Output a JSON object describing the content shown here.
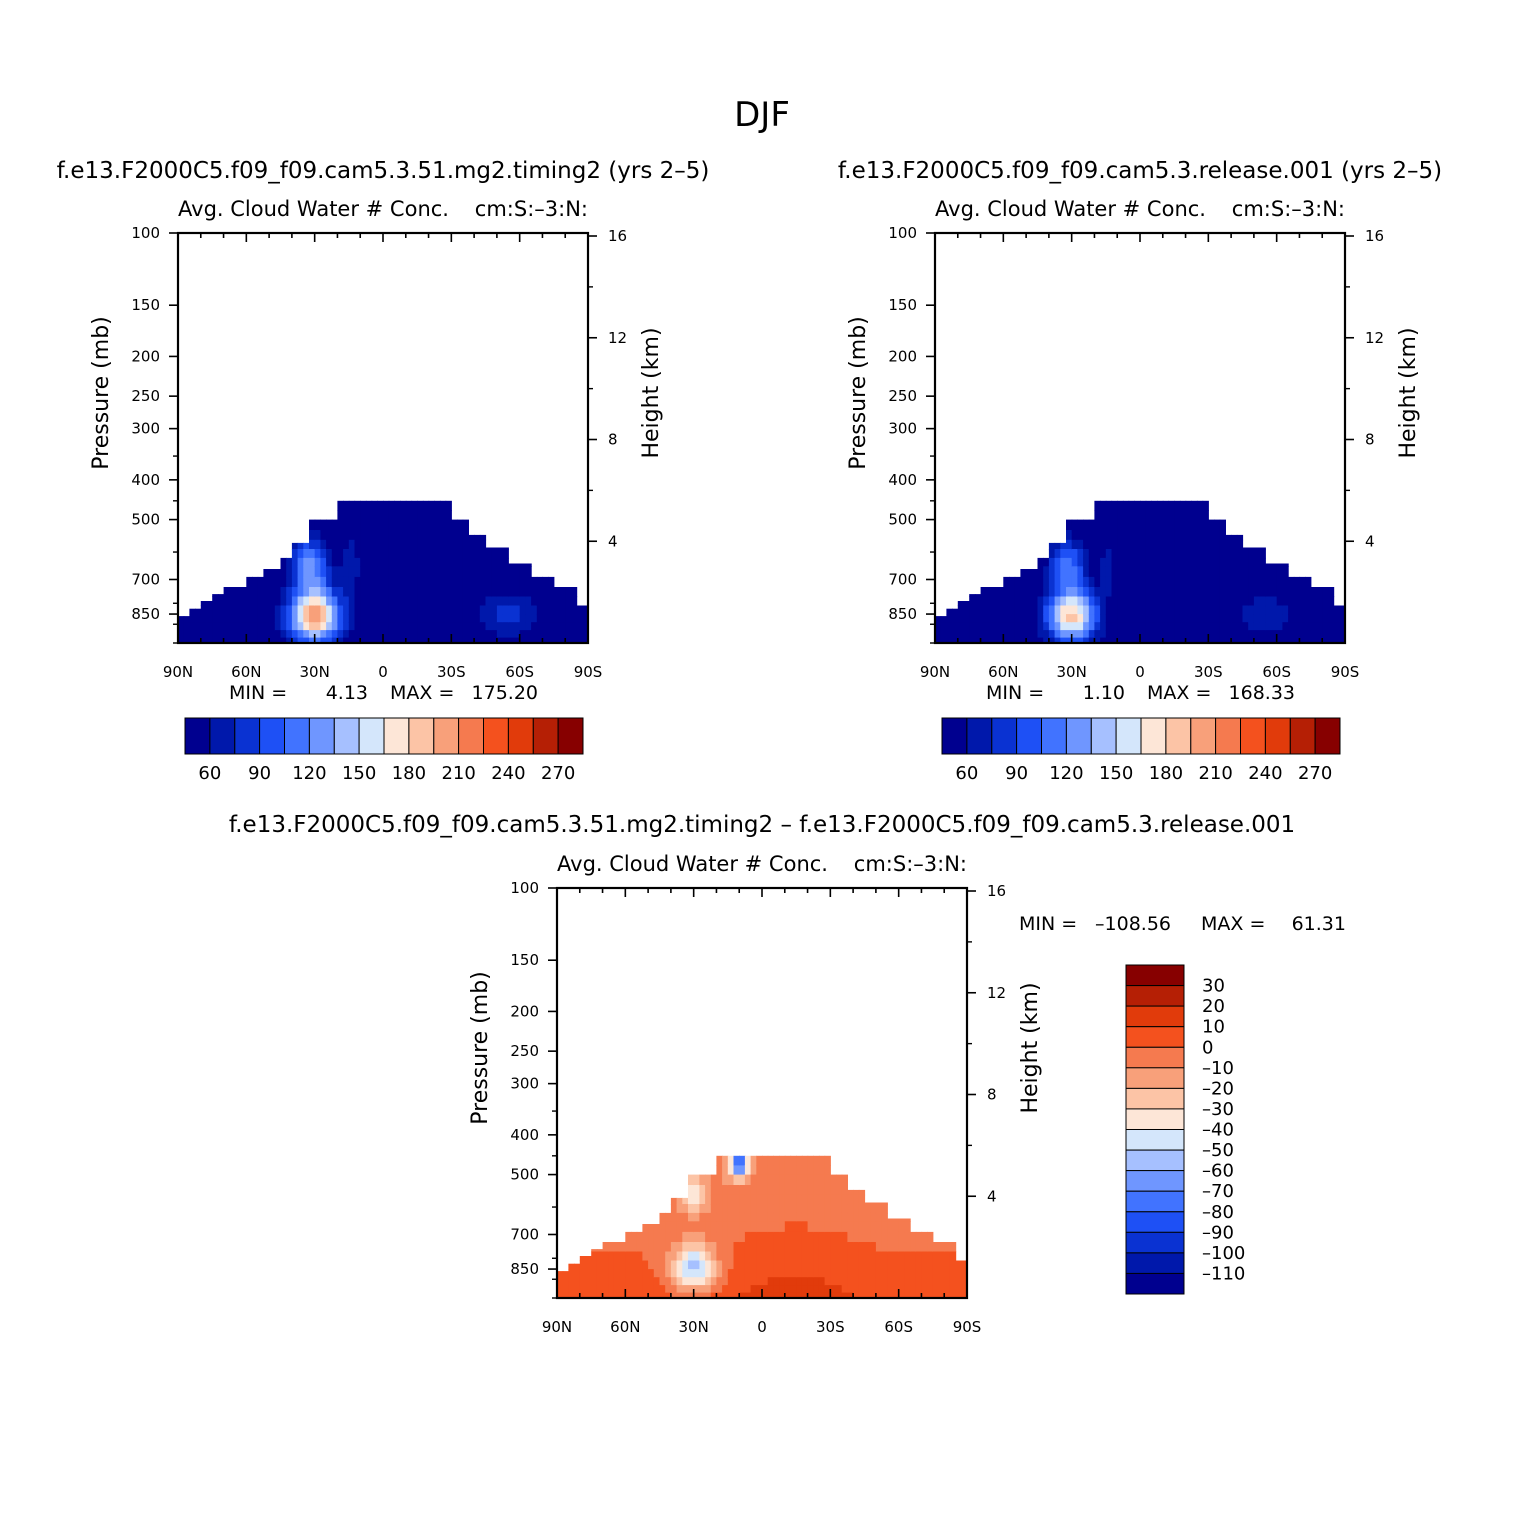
{
  "figure": {
    "title": "DJF"
  },
  "colors": {
    "abs": [
      "#00008f",
      "#0018ab",
      "#0a32d2",
      "#1e50f5",
      "#4173ff",
      "#6f96ff",
      "#a6c0ff",
      "#d4e6fb",
      "#fde6d7",
      "#fcc4a6",
      "#f8a07a",
      "#f57a4f",
      "#f4511e",
      "#e13b0b",
      "#b51f05",
      "#870000"
    ],
    "diff": [
      "#00008f",
      "#0018ab",
      "#0a32d2",
      "#1e50f5",
      "#4173ff",
      "#6f96ff",
      "#a6c0ff",
      "#d4e6fb",
      "#fde6d7",
      "#fcc4a6",
      "#f8a07a",
      "#f57a4f",
      "#f4511e",
      "#e13b0b",
      "#b51f05",
      "#870000"
    ]
  },
  "chart_data": [
    {
      "type": "heatmap",
      "case_title": "f.e13.F2000C5.f09_f09.cam5.3.51.mg2.timing2 (yrs 2–5)",
      "title": "Avg. Cloud Water # Conc.",
      "units": "cm:S:–3:N:",
      "ylabel": "Pressure (mb)",
      "ylabel_right": "Height (km)",
      "x_ticks": [
        "90N",
        "60N",
        "30N",
        "0",
        "30S",
        "60S",
        "90S"
      ],
      "x_range": [
        90,
        -90
      ],
      "y_ticks": [
        "100",
        "150",
        "200",
        "250",
        "300",
        "400",
        "500",
        "700",
        "850"
      ],
      "y_range": [
        100,
        1000
      ],
      "y_scale": "log",
      "height_ticks": [
        "16",
        "12",
        "8",
        "4"
      ],
      "stats": {
        "min_label": "MIN =",
        "min": "4.13",
        "max_label": "MAX =",
        "max": "175.20"
      },
      "colorbar": {
        "orientation": "horizontal",
        "labels": [
          "60",
          "90",
          "120",
          "150",
          "180",
          "210",
          "240",
          "270"
        ]
      }
    },
    {
      "type": "heatmap",
      "case_title": "f.e13.F2000C5.f09_f09.cam5.3.release.001 (yrs 2–5)",
      "title": "Avg. Cloud Water # Conc.",
      "units": "cm:S:–3:N:",
      "ylabel": "Pressure (mb)",
      "ylabel_right": "Height (km)",
      "x_ticks": [
        "90N",
        "60N",
        "30N",
        "0",
        "30S",
        "60S",
        "90S"
      ],
      "x_range": [
        90,
        -90
      ],
      "y_ticks": [
        "100",
        "150",
        "200",
        "250",
        "300",
        "400",
        "500",
        "700",
        "850"
      ],
      "y_range": [
        100,
        1000
      ],
      "y_scale": "log",
      "height_ticks": [
        "16",
        "12",
        "8",
        "4"
      ],
      "stats": {
        "min_label": "MIN =",
        "min": "1.10",
        "max_label": "MAX =",
        "max": "168.33"
      },
      "colorbar": {
        "orientation": "horizontal",
        "labels": [
          "60",
          "90",
          "120",
          "150",
          "180",
          "210",
          "240",
          "270"
        ]
      }
    },
    {
      "type": "heatmap",
      "case_title": "f.e13.F2000C5.f09_f09.cam5.3.51.mg2.timing2 – f.e13.F2000C5.f09_f09.cam5.3.release.001",
      "title": "Avg. Cloud Water # Conc.",
      "units": "cm:S:–3:N:",
      "ylabel": "Pressure (mb)",
      "ylabel_right": "Height (km)",
      "x_ticks": [
        "90N",
        "60N",
        "30N",
        "0",
        "30S",
        "60S",
        "90S"
      ],
      "x_range": [
        90,
        -90
      ],
      "y_ticks": [
        "100",
        "150",
        "200",
        "250",
        "300",
        "400",
        "500",
        "700",
        "850"
      ],
      "y_range": [
        100,
        1000
      ],
      "y_scale": "log",
      "height_ticks": [
        "16",
        "12",
        "8",
        "4"
      ],
      "stats": {
        "min_label": "MIN =",
        "min": "–108.56",
        "max_label": "MAX =",
        "max": "61.31"
      },
      "colorbar": {
        "orientation": "vertical",
        "labels": [
          "30",
          "20",
          "10",
          "0",
          "–10",
          "–20",
          "–30",
          "–40",
          "–50",
          "–60",
          "–70",
          "–80",
          "–90",
          "–100",
          "–110"
        ]
      }
    }
  ]
}
